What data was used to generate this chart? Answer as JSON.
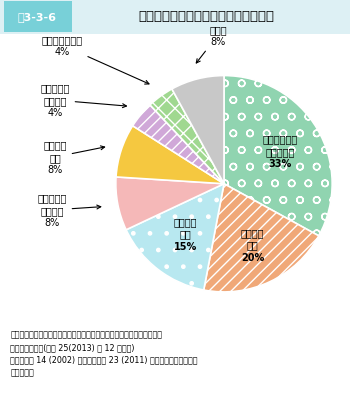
{
  "title_label": "図3-3-6",
  "title_text": "廃校後に現存する建物の主な活用用途",
  "slices": [
    {
      "label_in": "他の学校施設\nとして活用\n33%",
      "pct": 33,
      "color": "#90d4b0",
      "hatch": "o "
    },
    {
      "label_in": "社会体育\n施設\n20%",
      "pct": 20,
      "color": "#f0a878",
      "hatch": "///"
    },
    {
      "label_in": "社会教育\n施設\n15%",
      "pct": 15,
      "color": "#b8e8f0",
      "hatch": ". "
    },
    {
      "label_out": "福祉施設・\n・診療所\n8%",
      "pct": 8,
      "color": "#f5b8b8",
      "hatch": ""
    },
    {
      "label_out": "体験交流\n施設\n8%",
      "pct": 8,
      "color": "#f5c840",
      "hatch": ""
    },
    {
      "label_out": "文化・創業\n支援施設\n4%",
      "pct": 4,
      "color": "#d0a8d8",
      "hatch": "/// "
    },
    {
      "label_out": "工場・加工施設\n4%",
      "pct": 4,
      "color": "#a0d890",
      "hatch": "xx"
    },
    {
      "label_out": "その他\n8%",
      "pct": 8,
      "color": "#c8c8c8",
      "hatch": ""
    }
  ],
  "note1": "資料：文部科学省「～未来につなごう～みんなの廃校プロジェクト（パ",
  "note2": "ンフレット）」(平成 25(2013) 年 12 月公表)",
  "note3": "　注：平成 14 (2002) 年度から平成 23 (2011) 年度までに廃校となっ",
  "note4": "　た学校。",
  "title_bg": "#78d0d8",
  "title_text_color": "#333333",
  "bg_color": "#ffffff"
}
